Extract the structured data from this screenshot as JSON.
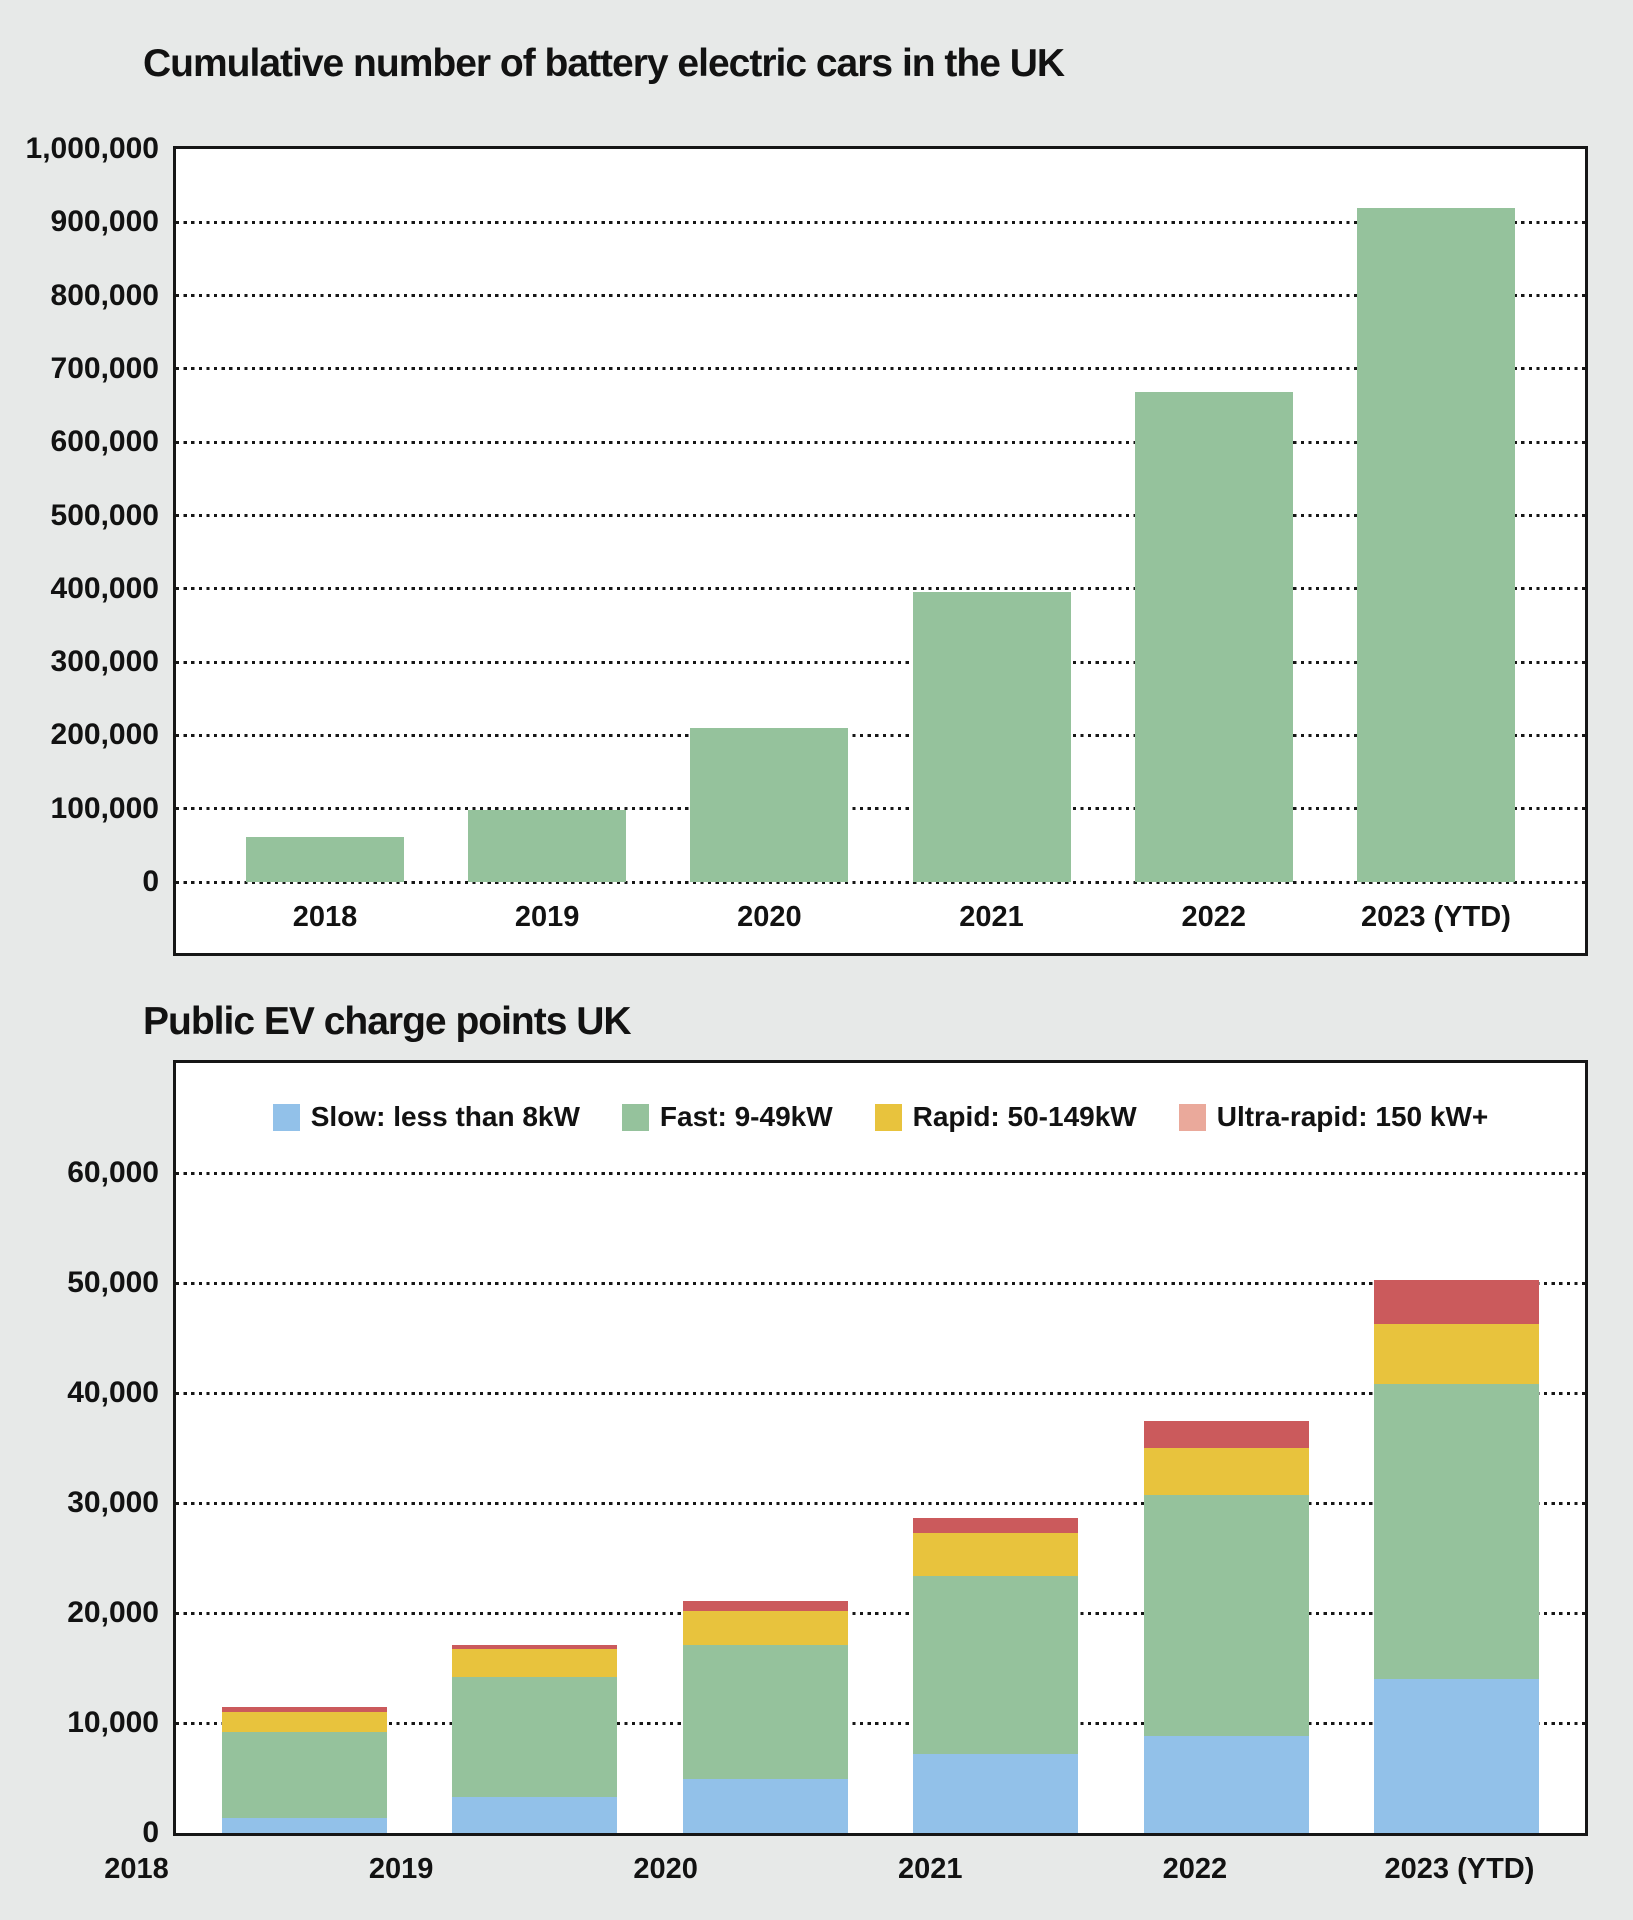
{
  "page": {
    "background": "#e7e9e8",
    "ink": "#161616",
    "plot_background": "#ffffff"
  },
  "chart_data": [
    {
      "type": "bar",
      "title": "Cumulative number of battery electric cars in the UK",
      "categories": [
        "2018",
        "2019",
        "2020",
        "2021",
        "2022",
        "2023 (YTD)"
      ],
      "values": [
        62000,
        98000,
        210000,
        396000,
        668000,
        920000
      ],
      "bar_color": "#95c29c",
      "xlabel": "",
      "ylabel": "",
      "ylim": [
        0,
        1000000
      ],
      "ytick_step": 100000,
      "grid": "dotted horizontal",
      "yticks": [
        {
          "value": 0,
          "label": "0"
        },
        {
          "value": 100000,
          "label": "100,000"
        },
        {
          "value": 200000,
          "label": "200,000"
        },
        {
          "value": 300000,
          "label": "300,000"
        },
        {
          "value": 400000,
          "label": "400,000"
        },
        {
          "value": 500000,
          "label": "500,000"
        },
        {
          "value": 600000,
          "label": "600,000"
        },
        {
          "value": 700000,
          "label": "700,000"
        },
        {
          "value": 800000,
          "label": "800,000"
        },
        {
          "value": 900000,
          "label": "900,000"
        },
        {
          "value": 1000000,
          "label": "1,000,000"
        }
      ]
    },
    {
      "type": "stacked-bar",
      "title": "Public EV charge points UK",
      "categories": [
        "2018",
        "2019",
        "2020",
        "2021",
        "2022",
        "2023 (YTD)"
      ],
      "series": [
        {
          "name": "Slow: less than 8kW",
          "color": "#92c1e9",
          "legend_color": "#92c1e9",
          "values": [
            1400,
            3300,
            4900,
            7200,
            8800,
            14000
          ]
        },
        {
          "name": "Fast: 9-49kW",
          "color": "#95c29c",
          "legend_color": "#95c29c",
          "values": [
            7800,
            10900,
            12200,
            16200,
            21900,
            26800
          ]
        },
        {
          "name": "Rapid: 50-149kW",
          "color": "#e8c33d",
          "legend_color": "#e8c33d",
          "values": [
            1800,
            2500,
            3100,
            3900,
            4300,
            5500
          ]
        },
        {
          "name": "Ultra-rapid: 150 kW+",
          "color": "#cb5a5c",
          "legend_color": "#eaa99b",
          "values": [
            500,
            400,
            900,
            1300,
            2500,
            4000
          ]
        }
      ],
      "totals": [
        11500,
        17100,
        21100,
        28600,
        37500,
        50300
      ],
      "xlabel": "",
      "ylabel": "",
      "ylim": [
        0,
        66000
      ],
      "ytick_step": 10000,
      "grid": "dotted horizontal",
      "legend_position": "top inside",
      "yticks": [
        {
          "value": 0,
          "label": "0"
        },
        {
          "value": 10000,
          "label": "10,000"
        },
        {
          "value": 20000,
          "label": "20,000"
        },
        {
          "value": 30000,
          "label": "30,000"
        },
        {
          "value": 40000,
          "label": "40,000"
        },
        {
          "value": 50000,
          "label": "50,000"
        },
        {
          "value": 60000,
          "label": "60,000"
        }
      ]
    }
  ]
}
